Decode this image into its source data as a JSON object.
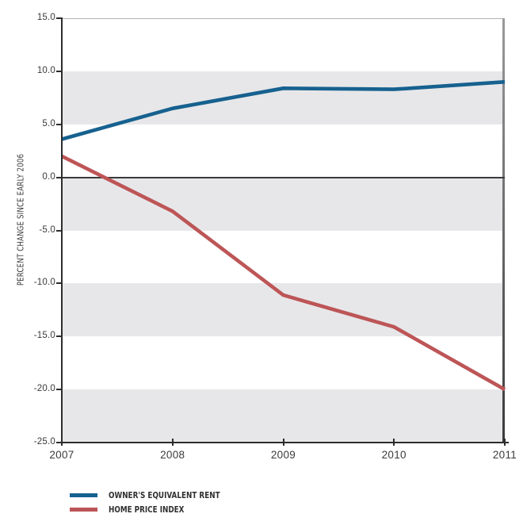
{
  "chart_data": {
    "type": "line",
    "title": "",
    "xlabel": "",
    "ylabel": "PERCENT CHANGE SINCE EARLY 2006",
    "x": [
      2007,
      2008,
      2009,
      2010,
      2011
    ],
    "x_tick_labels": [
      "2007",
      "2008",
      "2009",
      "2010",
      "2011"
    ],
    "y_ticks": [
      15,
      10,
      5,
      0,
      -5,
      -10,
      -15,
      -20,
      -25
    ],
    "y_tick_labels": [
      "15.0",
      "10.0",
      "5.0",
      "0.0",
      "-5.0",
      "-10.0",
      "-15.0",
      "-20.0",
      "-25.0"
    ],
    "ylim": [
      -25,
      15
    ],
    "grid": "off",
    "shaded_bands": [
      [
        10,
        5
      ],
      [
        0,
        -5
      ],
      [
        -10,
        -15
      ],
      [
        -20,
        -25
      ]
    ],
    "zero_line": true,
    "legend_position": "bottom-left",
    "series": [
      {
        "name": "OWNER'S EQUIVALENT RENT",
        "color": "#16618f",
        "values": [
          3.6,
          6.5,
          8.4,
          8.3,
          9.0
        ]
      },
      {
        "name": "HOME PRICE INDEX",
        "color": "#bd5557",
        "values": [
          2.0,
          -3.2,
          -11.1,
          -14.1,
          -20.0
        ]
      }
    ]
  },
  "colors": {
    "band": "#e7e7e9",
    "axis": "#2d2d2d",
    "zero_line": "#3a3a3a",
    "tick_text": "#3a3a3a",
    "plot_top_border": "#b3b3b3",
    "plot_right_border": "#4a4a4a"
  }
}
